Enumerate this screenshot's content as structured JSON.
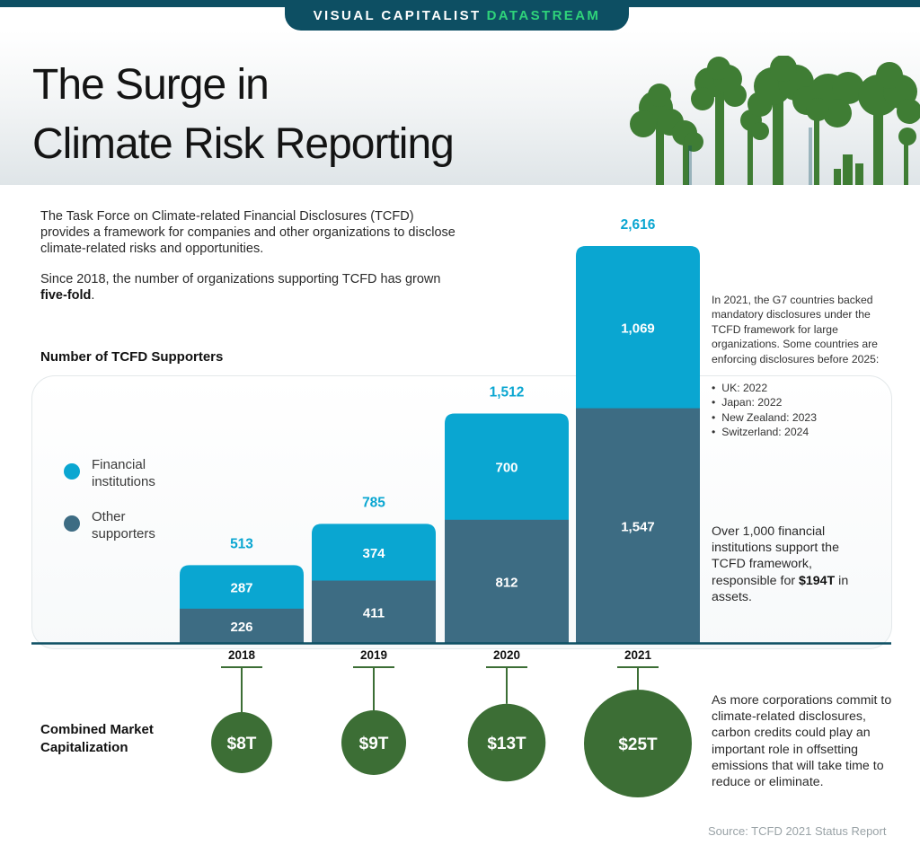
{
  "brand": {
    "name": "VISUAL CAPITALIST",
    "sub": "DATASTREAM"
  },
  "title": {
    "line1": "The Surge in",
    "line2": "Climate Risk Reporting"
  },
  "intro": {
    "p1": "The Task Force on Climate-related Financial Disclosures (TCFD) provides a framework for companies and other organizations to disclose climate-related risks and opportunities.",
    "p2_pre": "Since 2018, the number of organizations supporting TCFD has grown ",
    "p2_bold": "five-fold",
    "p2_post": "."
  },
  "colors": {
    "financial": "#0aa6d1",
    "other": "#3d6c83",
    "market_cap": "#3c6e35",
    "trees": "#3f7d34",
    "accent": "#0aa6d1"
  },
  "chart_data": {
    "type": "bar",
    "title": "Number of TCFD Supporters",
    "stacked": true,
    "categories": [
      "2018",
      "2019",
      "2020",
      "2021"
    ],
    "series": [
      {
        "name": "Other supporters",
        "values": [
          226,
          411,
          812,
          1547
        ],
        "labels": [
          "226",
          "411",
          "812",
          "1,547"
        ]
      },
      {
        "name": "Financial institutions",
        "values": [
          287,
          374,
          700,
          1069
        ],
        "labels": [
          "287",
          "374",
          "700",
          "1,069"
        ]
      }
    ],
    "totals": [
      513,
      785,
      1512,
      2616
    ],
    "total_labels": [
      "513",
      "785",
      "1,512",
      "2,616"
    ],
    "ylim": [
      0,
      2616
    ],
    "legend": [
      {
        "name": "Financial institutions",
        "line1": "Financial",
        "line2": "institutions"
      },
      {
        "name": "Other supporters",
        "line1": "Other",
        "line2": "supporters"
      }
    ],
    "market_cap": {
      "label": "Combined Market Capitalization",
      "values_trillion": [
        8,
        9,
        13,
        25
      ],
      "labels": [
        "$8T",
        "$9T",
        "$13T",
        "$25T"
      ]
    }
  },
  "notes": {
    "g7_text": "In 2021, the G7 countries backed mandatory disclosures under the TCFD framework for large organizations. Some countries are enforcing disclosures before 2025:",
    "countries": [
      "UK: 2022",
      "Japan: 2022",
      "New Zealand: 2023",
      "Switzerland: 2024"
    ],
    "fi_pre": "Over 1,000 financial institutions support the TCFD framework, responsible for ",
    "fi_bold": "$194T",
    "fi_post": " in assets.",
    "carbon_text": "As more corporations commit to climate-related disclosures, carbon credits could play an important role in offsetting emissions that will take time to reduce or eliminate."
  },
  "source": "Source: TCFD 2021 Status Report"
}
